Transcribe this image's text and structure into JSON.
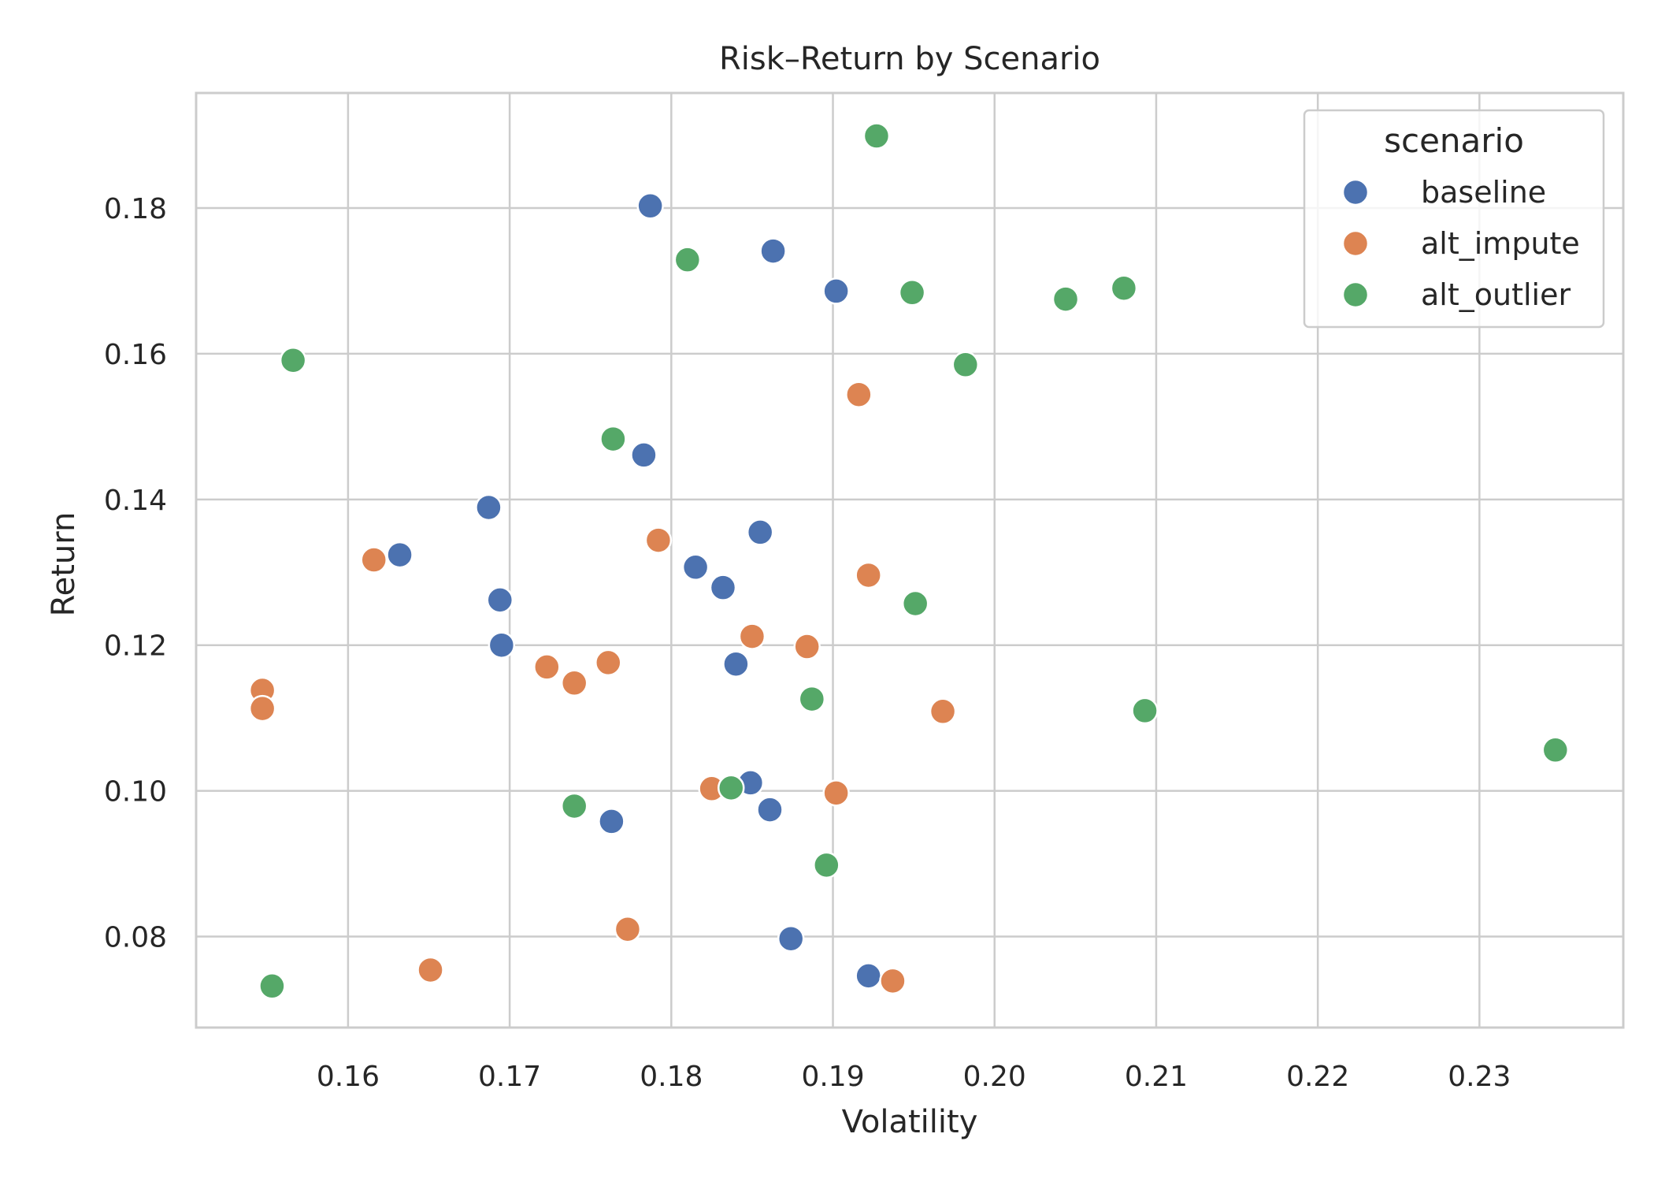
{
  "chart_data": {
    "type": "scatter",
    "title": "Risk–Return by Scenario",
    "xlabel": "Volatility",
    "ylabel": "Return",
    "xlim": [
      0.1506,
      0.2389
    ],
    "ylim": [
      0.0675,
      0.1958
    ],
    "xticks": [
      0.16,
      0.17,
      0.18,
      0.19,
      0.2,
      0.21,
      0.22,
      0.23
    ],
    "xtick_labels": [
      "0.16",
      "0.17",
      "0.18",
      "0.19",
      "0.20",
      "0.21",
      "0.22",
      "0.23"
    ],
    "yticks": [
      0.08,
      0.1,
      0.12,
      0.14,
      0.16,
      0.18
    ],
    "ytick_labels": [
      "0.08",
      "0.10",
      "0.12",
      "0.14",
      "0.16",
      "0.18"
    ],
    "grid": true,
    "legend": {
      "title": "scenario",
      "position": "top-right"
    },
    "series": [
      {
        "name": "baseline",
        "color": "#4c72b0",
        "points": [
          [
            0.1787,
            0.1803
          ],
          [
            0.1863,
            0.1741
          ],
          [
            0.1902,
            0.1686
          ],
          [
            0.1783,
            0.1461
          ],
          [
            0.1687,
            0.1389
          ],
          [
            0.1632,
            0.1324
          ],
          [
            0.1855,
            0.1355
          ],
          [
            0.1815,
            0.1307
          ],
          [
            0.1832,
            0.1279
          ],
          [
            0.1694,
            0.1262
          ],
          [
            0.1695,
            0.12
          ],
          [
            0.184,
            0.1174
          ],
          [
            0.1849,
            0.1011
          ],
          [
            0.1861,
            0.0974
          ],
          [
            0.1763,
            0.0958
          ],
          [
            0.1874,
            0.0797
          ],
          [
            0.1922,
            0.0746
          ]
        ]
      },
      {
        "name": "alt_impute",
        "color": "#dd8452",
        "points": [
          [
            0.1916,
            0.1544
          ],
          [
            0.1792,
            0.1344
          ],
          [
            0.1616,
            0.1317
          ],
          [
            0.1922,
            0.1296
          ],
          [
            0.185,
            0.1212
          ],
          [
            0.1884,
            0.1198
          ],
          [
            0.1761,
            0.1176
          ],
          [
            0.1723,
            0.117
          ],
          [
            0.174,
            0.1148
          ],
          [
            0.1547,
            0.1138
          ],
          [
            0.1547,
            0.1113
          ],
          [
            0.1968,
            0.1109
          ],
          [
            0.1825,
            0.1003
          ],
          [
            0.1902,
            0.0997
          ],
          [
            0.1773,
            0.081
          ],
          [
            0.1651,
            0.0754
          ],
          [
            0.1937,
            0.0739
          ]
        ]
      },
      {
        "name": "alt_outlier",
        "color": "#55a868",
        "points": [
          [
            0.1927,
            0.1899
          ],
          [
            0.181,
            0.1729
          ],
          [
            0.1949,
            0.1684
          ],
          [
            0.2044,
            0.1675
          ],
          [
            0.208,
            0.169
          ],
          [
            0.1566,
            0.1591
          ],
          [
            0.1982,
            0.1585
          ],
          [
            0.1764,
            0.1483
          ],
          [
            0.1951,
            0.1257
          ],
          [
            0.1887,
            0.1126
          ],
          [
            0.2093,
            0.111
          ],
          [
            0.2347,
            0.1056
          ],
          [
            0.1837,
            0.1004
          ],
          [
            0.174,
            0.0979
          ],
          [
            0.1896,
            0.0898
          ],
          [
            0.1553,
            0.0732
          ]
        ]
      }
    ]
  }
}
